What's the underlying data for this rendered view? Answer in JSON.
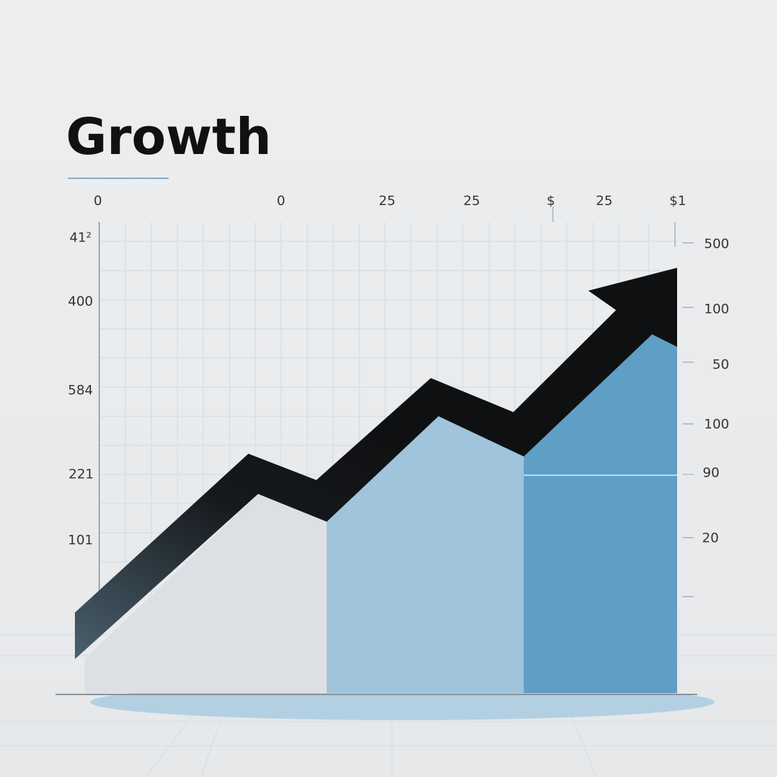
{
  "title": "Growth",
  "top_labels": [
    "0",
    "0",
    "25",
    "25",
    "$",
    "25",
    "$1"
  ],
  "left_labels": [
    "41²",
    "400",
    "584",
    "221",
    "101"
  ],
  "right_labels": [
    "500",
    "100",
    "50",
    "100",
    "90",
    "20"
  ]
}
